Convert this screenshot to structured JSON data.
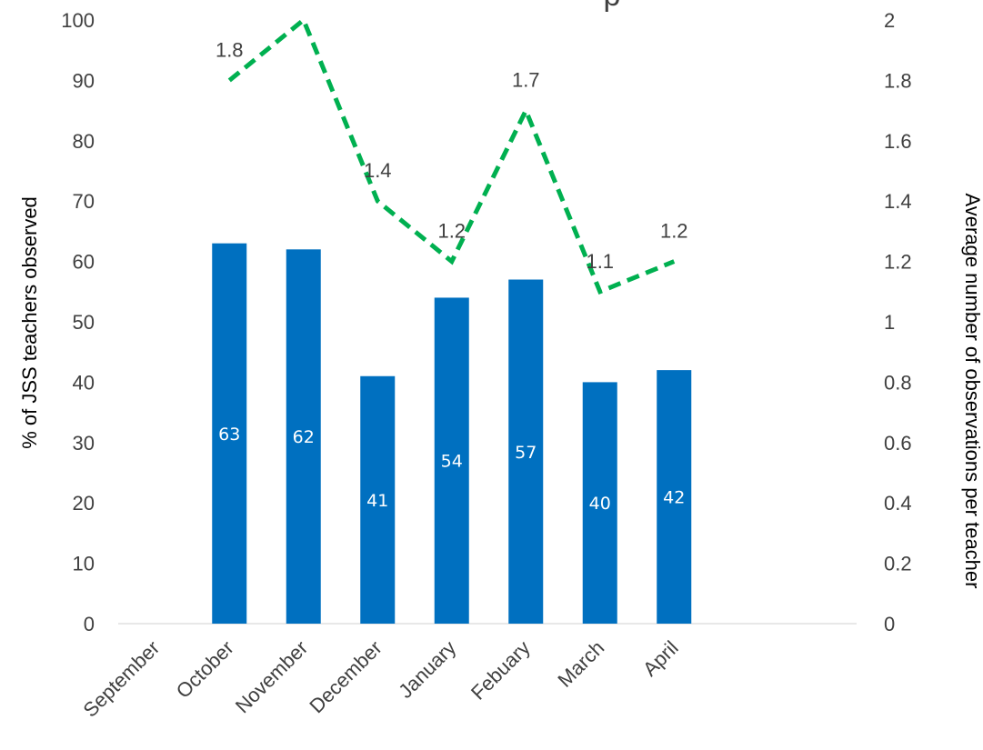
{
  "chart_data": {
    "type": "bar",
    "title_fragment": "p",
    "categories": [
      "September",
      "October",
      "November",
      "December",
      "January",
      "Febuary",
      "March",
      "April"
    ],
    "series": [
      {
        "type": "bar",
        "axis": "left",
        "values": [
          null,
          63,
          62,
          41,
          54,
          57,
          40,
          42
        ],
        "labels": [
          "",
          "63",
          "62",
          "41",
          "54",
          "57",
          "40",
          "42"
        ],
        "color": "#0070c0"
      },
      {
        "type": "line",
        "axis": "right",
        "style": "dashed",
        "values": [
          null,
          1.8,
          2.0,
          1.4,
          1.2,
          1.7,
          1.1,
          1.2
        ],
        "labels": [
          "",
          "1.8",
          "",
          "1.4",
          "1.2",
          "1.7",
          "1.1",
          "1.2"
        ],
        "color": "#00b050"
      }
    ],
    "ylabel": "% of JSS teachers observed",
    "y2label": "Average number of observations per teacher",
    "ylim": [
      0,
      100
    ],
    "yticks": [
      "0",
      "10",
      "20",
      "30",
      "40",
      "50",
      "60",
      "70",
      "80",
      "90",
      "100"
    ],
    "y2lim": [
      0,
      2
    ],
    "y2ticks": [
      "0",
      "0.2",
      "0.4",
      "0.6",
      "0.8",
      "1",
      "1.2",
      "1.4",
      "1.6",
      "1.8",
      "2"
    ],
    "grid": false,
    "legend": "none",
    "axis_line_color": "#d9d9d9"
  }
}
